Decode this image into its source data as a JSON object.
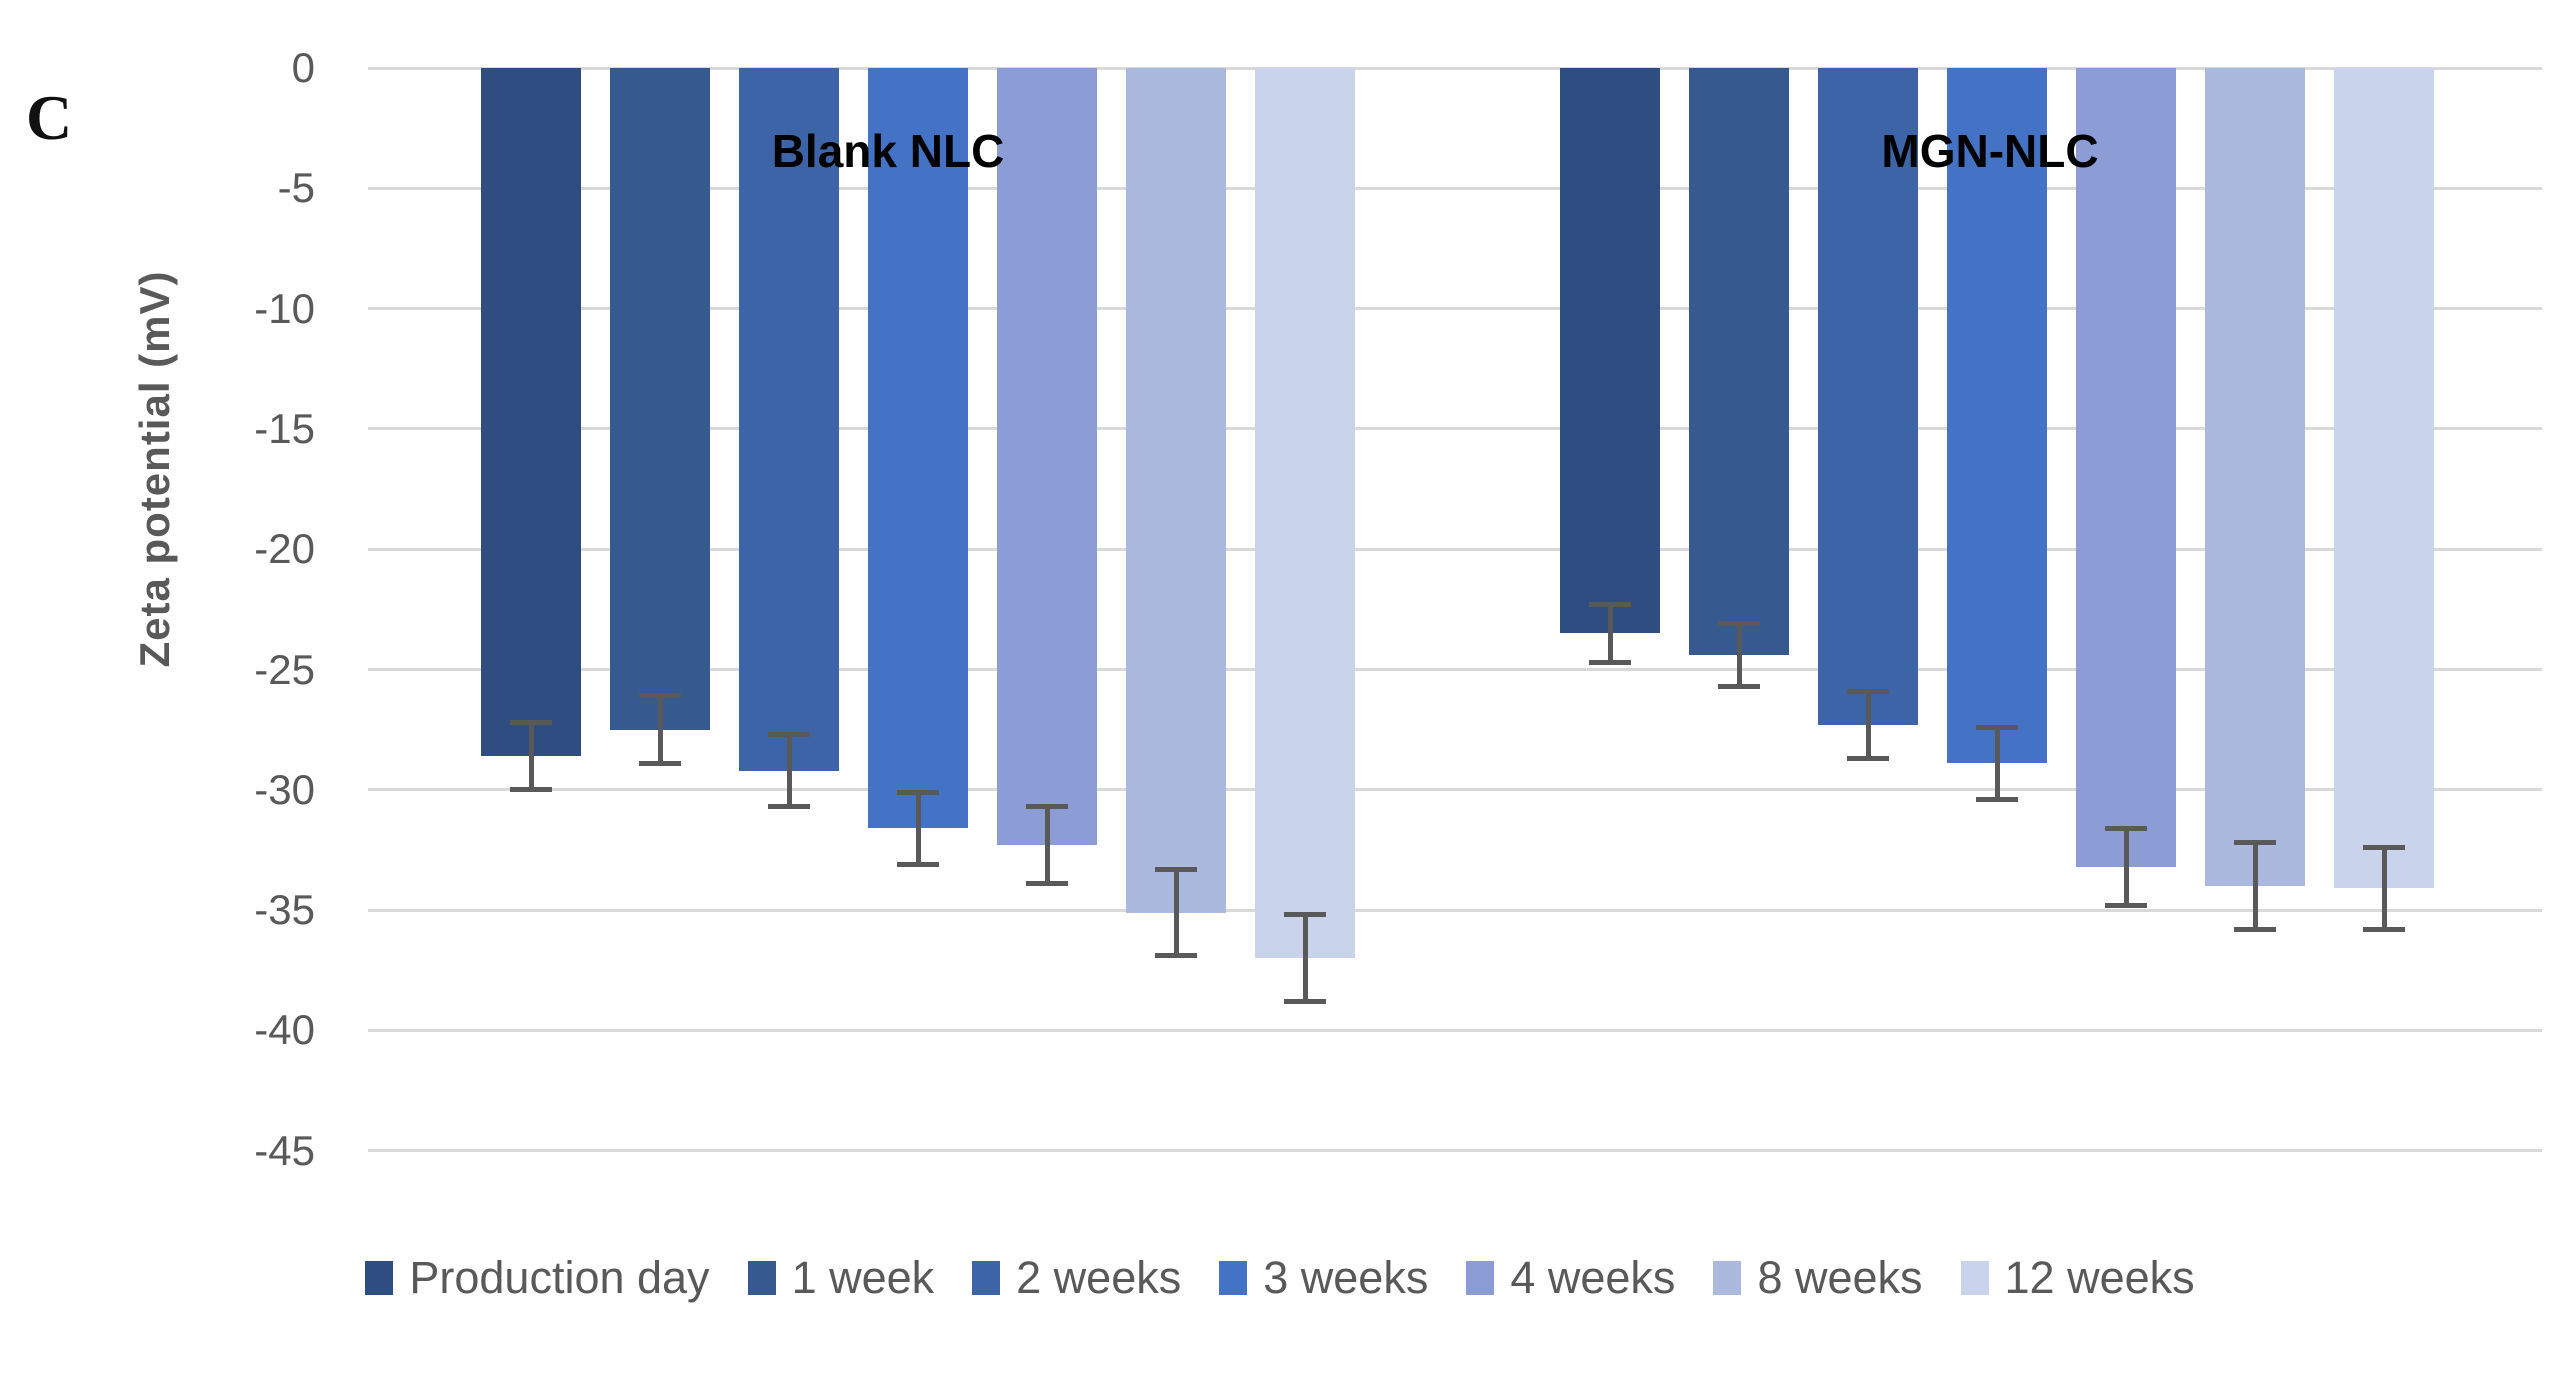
{
  "panel_label": "C",
  "chart_data": {
    "type": "bar",
    "title": "",
    "xlabel": "",
    "ylabel": "Zeta potential (mV)",
    "ylim": [
      -45,
      0
    ],
    "yticks": [
      0,
      -5,
      -10,
      -15,
      -20,
      -25,
      -30,
      -35,
      -40,
      -45
    ],
    "grid": true,
    "legend_position": "bottom",
    "categories": [
      "Blank NLC",
      "MGN-NLC"
    ],
    "series": [
      {
        "name": "Production day",
        "color": "#2E4D80",
        "values": [
          -28.6,
          -23.5
        ],
        "errors": [
          1.4,
          1.2
        ]
      },
      {
        "name": "1 week",
        "color": "#36598F",
        "values": [
          -27.5,
          -24.4
        ],
        "errors": [
          1.4,
          1.3
        ]
      },
      {
        "name": "2 weeks",
        "color": "#3C64A6",
        "values": [
          -29.2,
          -27.3
        ],
        "errors": [
          1.5,
          1.4
        ]
      },
      {
        "name": "3 weeks",
        "color": "#4472C4",
        "values": [
          -31.6,
          -28.9
        ],
        "errors": [
          1.5,
          1.5
        ]
      },
      {
        "name": "4 weeks",
        "color": "#8B9DD4",
        "values": [
          -32.3,
          -33.2
        ],
        "errors": [
          1.6,
          1.6
        ]
      },
      {
        "name": "8 weeks",
        "color": "#ACB9DE",
        "values": [
          -35.1,
          -34.0
        ],
        "errors": [
          1.8,
          1.8
        ]
      },
      {
        "name": "12 weeks",
        "color": "#C9D3EB",
        "values": [
          -37.0,
          -34.1
        ],
        "errors": [
          1.8,
          1.7
        ]
      }
    ],
    "colors": {
      "gridline": "#D9D9D9",
      "error_bar": "#595959",
      "axis_text": "#595959",
      "group_label_text": "#000000"
    }
  }
}
